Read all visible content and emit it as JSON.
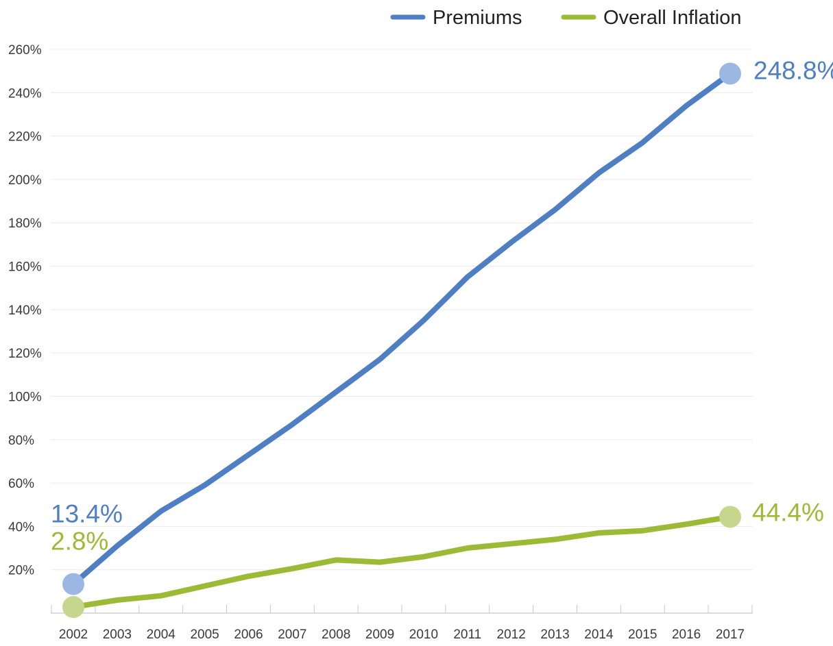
{
  "chart_data": {
    "type": "line",
    "title": "",
    "xlabel": "",
    "ylabel": "",
    "x": [
      "2002",
      "2003",
      "2004",
      "2005",
      "2006",
      "2007",
      "2008",
      "2009",
      "2010",
      "2011",
      "2012",
      "2013",
      "2014",
      "2015",
      "2016",
      "2017"
    ],
    "yticks": [
      "20%",
      "40%",
      "60%",
      "80%",
      "100%",
      "120%",
      "140%",
      "160%",
      "180%",
      "200%",
      "220%",
      "240%",
      "260%"
    ],
    "ylim": [
      0,
      260
    ],
    "grid": true,
    "legend_position": "top-right",
    "series": [
      {
        "name": "Premiums",
        "color": "#4f7fc3",
        "marker_color": "#9cb7e2",
        "values": [
          13.4,
          31,
          47,
          59,
          73,
          87,
          102,
          117,
          135,
          155,
          171,
          186,
          203,
          217,
          234,
          248.8
        ],
        "start_label": "13.4%",
        "end_label": "248.8%"
      },
      {
        "name": "Overall Inflation",
        "color": "#9cba35",
        "marker_color": "#c6d68d",
        "values": [
          2.8,
          6,
          8,
          12.5,
          17,
          20.5,
          24.5,
          23.5,
          26,
          30,
          32,
          34,
          37,
          38,
          41,
          44.4
        ],
        "start_label": "2.8%",
        "end_label": "44.4%"
      }
    ]
  }
}
